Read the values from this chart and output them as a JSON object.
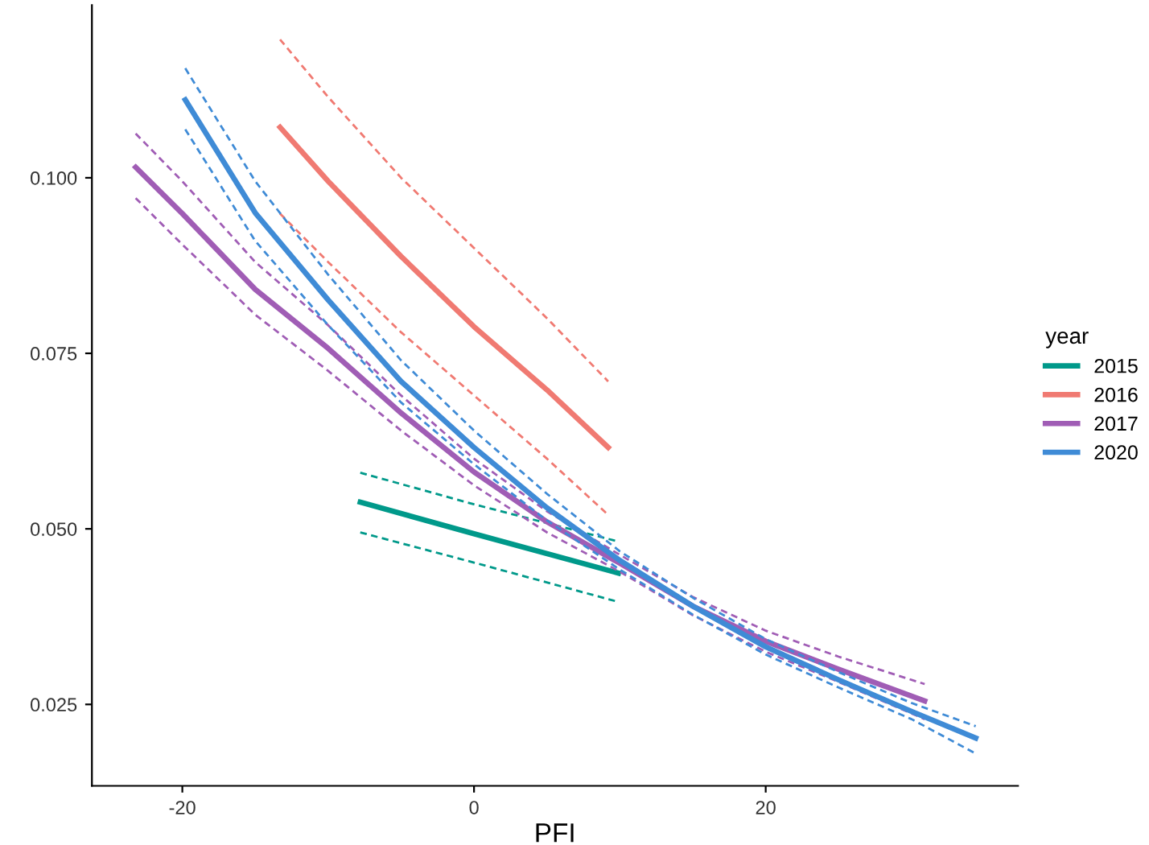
{
  "chart_data": {
    "type": "line",
    "xlabel": "PFI",
    "legend_title": "year",
    "legend": "right",
    "grid": false,
    "marker": "none",
    "line_style": "solid",
    "xlim": [
      -26.2,
      37.3
    ],
    "ylim": [
      0.0134,
      0.1246
    ],
    "xticks": [
      -20,
      0,
      20
    ],
    "yticks": [
      {
        "value": 0.025,
        "label": "0.025"
      },
      {
        "value": 0.05,
        "label": "0.050"
      },
      {
        "value": 0.075,
        "label": "0.075"
      },
      {
        "value": 0.1,
        "label": "0.100"
      }
    ],
    "series": [
      {
        "name": "2015",
        "color": "#00998a",
        "x": [
          -7.8,
          0,
          9.9
        ],
        "values": [
          0.0538,
          0.0493,
          0.0437
        ]
      },
      {
        "color": "#00998a",
        "line_style": "dashed",
        "x": [
          -7.8,
          0,
          9.9
        ],
        "values": [
          0.058,
          0.0535,
          0.0482
        ]
      },
      {
        "color": "#00998a",
        "line_style": "dashed",
        "x": [
          -7.8,
          0,
          9.9
        ],
        "values": [
          0.0495,
          0.0452,
          0.0396
        ]
      },
      {
        "name": "2016",
        "color": "#f07a72",
        "x": [
          -13.3,
          -10,
          -5,
          0,
          5,
          9.2
        ],
        "values": [
          0.1072,
          0.0995,
          0.0888,
          0.0788,
          0.0698,
          0.0616
        ]
      },
      {
        "color": "#f07a72",
        "line_style": "dashed",
        "x": [
          -13.3,
          -10,
          -5,
          0,
          5,
          9.2
        ],
        "values": [
          0.1197,
          0.1115,
          0.1,
          0.09,
          0.08,
          0.071
        ]
      },
      {
        "color": "#f07a72",
        "line_style": "dashed",
        "x": [
          -13.3,
          -10,
          -5,
          0,
          5,
          9.2
        ],
        "values": [
          0.0949,
          0.088,
          0.078,
          0.069,
          0.06,
          0.052
        ]
      },
      {
        "name": "2017",
        "color": "#a05db5",
        "x": [
          -23.2,
          -20,
          -15,
          -10,
          -5,
          0,
          5,
          10,
          15,
          20,
          25,
          30.9
        ],
        "values": [
          0.1015,
          0.0949,
          0.0841,
          0.0757,
          0.0665,
          0.0581,
          0.051,
          0.0451,
          0.039,
          0.034,
          0.03,
          0.0255
        ]
      },
      {
        "color": "#a05db5",
        "line_style": "dashed",
        "x": [
          -23.2,
          -20,
          -15,
          -10,
          -5,
          0,
          5,
          10,
          15,
          20,
          25,
          30.9
        ],
        "values": [
          0.1063,
          0.0995,
          0.088,
          0.079,
          0.069,
          0.06,
          0.0525,
          0.0463,
          0.0403,
          0.0355,
          0.0318,
          0.0279
        ]
      },
      {
        "color": "#a05db5",
        "line_style": "dashed",
        "x": [
          -23.2,
          -20,
          -15,
          -10,
          -5,
          0,
          5,
          10,
          15,
          20,
          25,
          30.9
        ],
        "values": [
          0.0971,
          0.0905,
          0.0805,
          0.0725,
          0.064,
          0.0562,
          0.0495,
          0.0439,
          0.0377,
          0.0325,
          0.0282,
          0.0229
        ]
      },
      {
        "name": "2020",
        "color": "#3f8bd6",
        "x": [
          -19.8,
          -15,
          -10,
          -5,
          0,
          5,
          10,
          15,
          20,
          25,
          30,
          34.4
        ],
        "values": [
          0.1111,
          0.095,
          0.0826,
          0.071,
          0.0616,
          0.053,
          0.0455,
          0.039,
          0.0332,
          0.0285,
          0.024,
          0.0202
        ]
      },
      {
        "color": "#3f8bd6",
        "line_style": "dashed",
        "x": [
          -19.8,
          -15,
          -10,
          -5,
          0,
          5,
          10,
          15,
          20,
          25,
          30,
          34.4
        ],
        "values": [
          0.1156,
          0.0995,
          0.0862,
          0.074,
          0.064,
          0.055,
          0.0468,
          0.0402,
          0.0343,
          0.0296,
          0.0252,
          0.0219
        ]
      },
      {
        "color": "#3f8bd6",
        "line_style": "dashed",
        "x": [
          -19.8,
          -15,
          -10,
          -5,
          0,
          5,
          10,
          15,
          20,
          25,
          30,
          34.4
        ],
        "values": [
          0.1069,
          0.091,
          0.079,
          0.068,
          0.0592,
          0.0512,
          0.0442,
          0.0378,
          0.0321,
          0.0274,
          0.0229,
          0.018
        ]
      }
    ]
  }
}
